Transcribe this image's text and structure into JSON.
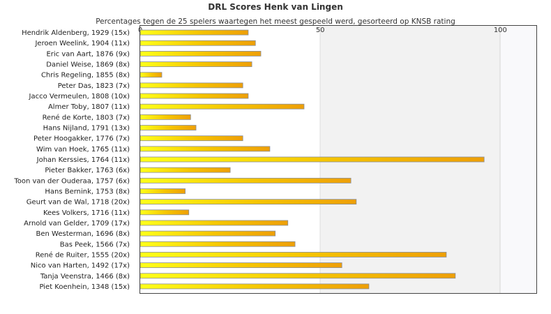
{
  "chart_data": {
    "type": "bar",
    "orientation": "horizontal",
    "title": "DRL Scores Henk van Lingen",
    "subtitle": "Percentages tegen de 25 spelers waartegen het meest gespeeld werd, gesorteerd op KNSB rating",
    "xlim": [
      0,
      110
    ],
    "xticks": [
      "0",
      "50",
      "100"
    ],
    "tick_values": [
      0,
      50,
      100
    ],
    "grid": true,
    "bar_color": "#f5c400",
    "categories": [
      "Hendrik Aldenberg, 1929 (15x)",
      "Jeroen Weelink, 1904 (11x)",
      "Eric van Aart, 1876 (9x)",
      "Daniel Weise, 1869 (8x)",
      "Chris Regeling, 1855 (8x)",
      "Peter Das, 1823 (7x)",
      "Jacco Vermeulen, 1808 (10x)",
      "Almer Toby, 1807 (11x)",
      "René de Korte, 1803 (7x)",
      "Hans Nijland, 1791 (13x)",
      "Peter Hoogakker, 1776 (7x)",
      "Wim van Hoek, 1765 (11x)",
      "Johan Kerssies, 1764 (11x)",
      "Pieter Bakker, 1763 (6x)",
      "Toon van der Ouderaa, 1757 (6x)",
      "Hans Bernink, 1753 (8x)",
      "Geurt van de Wal, 1718 (20x)",
      "Kees Volkers, 1716 (11x)",
      "Arnold van Gelder, 1709 (17x)",
      "Ben Westerman, 1696 (8x)",
      "Bas Peek, 1566 (7x)",
      "René de Ruiter, 1555 (20x)",
      "Nico van Harten, 1492 (17x)",
      "Tanja Veenstra, 1466 (8x)",
      "Piet Koenhein, 1348 (15x)"
    ],
    "values": [
      30,
      32,
      33.5,
      31,
      6,
      28.5,
      30,
      45.5,
      14,
      15.5,
      28.5,
      36,
      95.5,
      25,
      58.5,
      12.5,
      60,
      13.5,
      41,
      37.5,
      43,
      85,
      56,
      87.5,
      63.5
    ]
  }
}
